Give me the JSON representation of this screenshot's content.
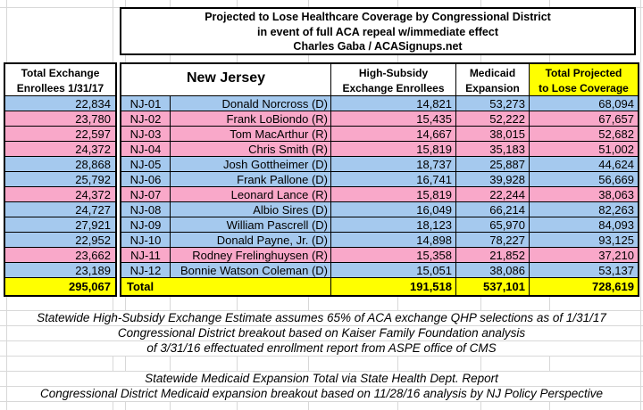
{
  "title": {
    "line1": "Projected to Lose Healthcare Coverage by Congressional District",
    "line2": "in event of full ACA repeal w/immediate effect",
    "line3": "Charles Gaba / ACASignups.net"
  },
  "left_column": {
    "header_line1": "Total Exchange",
    "header_line2": "Enrollees 1/31/17",
    "total": "295,067"
  },
  "main_table": {
    "state_label": "New Jersey",
    "columns": {
      "high_subsidy_line1": "High-Subsidy",
      "high_subsidy_line2": "Exchange Enrollees",
      "medicaid_line1": "Medicaid",
      "medicaid_line2": "Expansion",
      "total_line1": "Total Projected",
      "total_line2": "to Lose Coverage"
    },
    "rows": [
      {
        "district": "NJ-01",
        "representative": "Donald Norcross (D)",
        "party": "D",
        "exchange_enrollees": "22,834",
        "high_subsidy": "14,821",
        "medicaid": "53,273",
        "projected_total": "68,094"
      },
      {
        "district": "NJ-02",
        "representative": "Frank LoBiondo (R)",
        "party": "R",
        "exchange_enrollees": "23,780",
        "high_subsidy": "15,435",
        "medicaid": "52,222",
        "projected_total": "67,657"
      },
      {
        "district": "NJ-03",
        "representative": "Tom MacArthur (R)",
        "party": "R",
        "exchange_enrollees": "22,597",
        "high_subsidy": "14,667",
        "medicaid": "38,015",
        "projected_total": "52,682"
      },
      {
        "district": "NJ-04",
        "representative": "Chris Smith (R)",
        "party": "R",
        "exchange_enrollees": "24,372",
        "high_subsidy": "15,819",
        "medicaid": "35,183",
        "projected_total": "51,002"
      },
      {
        "district": "NJ-05",
        "representative": "Josh Gottheimer (D)",
        "party": "D",
        "exchange_enrollees": "28,868",
        "high_subsidy": "18,737",
        "medicaid": "25,887",
        "projected_total": "44,624"
      },
      {
        "district": "NJ-06",
        "representative": "Frank Pallone (D)",
        "party": "D",
        "exchange_enrollees": "25,792",
        "high_subsidy": "16,741",
        "medicaid": "39,928",
        "projected_total": "56,669"
      },
      {
        "district": "NJ-07",
        "representative": "Leonard Lance (R)",
        "party": "R",
        "exchange_enrollees": "24,372",
        "high_subsidy": "15,819",
        "medicaid": "22,244",
        "projected_total": "38,063"
      },
      {
        "district": "NJ-08",
        "representative": "Albio Sires (D)",
        "party": "D",
        "exchange_enrollees": "24,727",
        "high_subsidy": "16,049",
        "medicaid": "66,214",
        "projected_total": "82,263"
      },
      {
        "district": "NJ-09",
        "representative": "William Pascrell (D)",
        "party": "D",
        "exchange_enrollees": "27,921",
        "high_subsidy": "18,123",
        "medicaid": "65,970",
        "projected_total": "84,093"
      },
      {
        "district": "NJ-10",
        "representative": "Donald Payne, Jr. (D)",
        "party": "D",
        "exchange_enrollees": "22,952",
        "high_subsidy": "14,898",
        "medicaid": "78,227",
        "projected_total": "93,125"
      },
      {
        "district": "NJ-11",
        "representative": "Rodney Frelinghuysen (R)",
        "party": "R",
        "exchange_enrollees": "23,662",
        "high_subsidy": "15,358",
        "medicaid": "21,852",
        "projected_total": "37,210"
      },
      {
        "district": "NJ-12",
        "representative": "Bonnie Watson Coleman (D)",
        "party": "D",
        "exchange_enrollees": "23,189",
        "high_subsidy": "15,051",
        "medicaid": "38,086",
        "projected_total": "53,137"
      }
    ],
    "total_label": "Total",
    "totals": {
      "exchange_enrollees": "295,067",
      "high_subsidy": "191,518",
      "medicaid": "537,101",
      "projected_total": "728,619"
    }
  },
  "footnotes": [
    "Statewide High-Subsidy Exchange Estimate assumes 65% of ACA exchange QHP selections as of 1/31/17",
    "Congressional District breakout based on Kaiser Family Foundation analysis",
    "of 3/31/16 effectuated enrollment report from ASPE office of CMS",
    "Statewide Medicaid Expansion Total via State Health Dept. Report",
    "Congressional District Medicaid expansion breakout based on 11/28/16 analysis by NJ Policy Perspective"
  ],
  "colors": {
    "democrat_row": "#A5C9EE",
    "republican_row": "#F9A8C9",
    "highlight_yellow": "#FFFF00",
    "grid_line": "#D8D8D8"
  }
}
